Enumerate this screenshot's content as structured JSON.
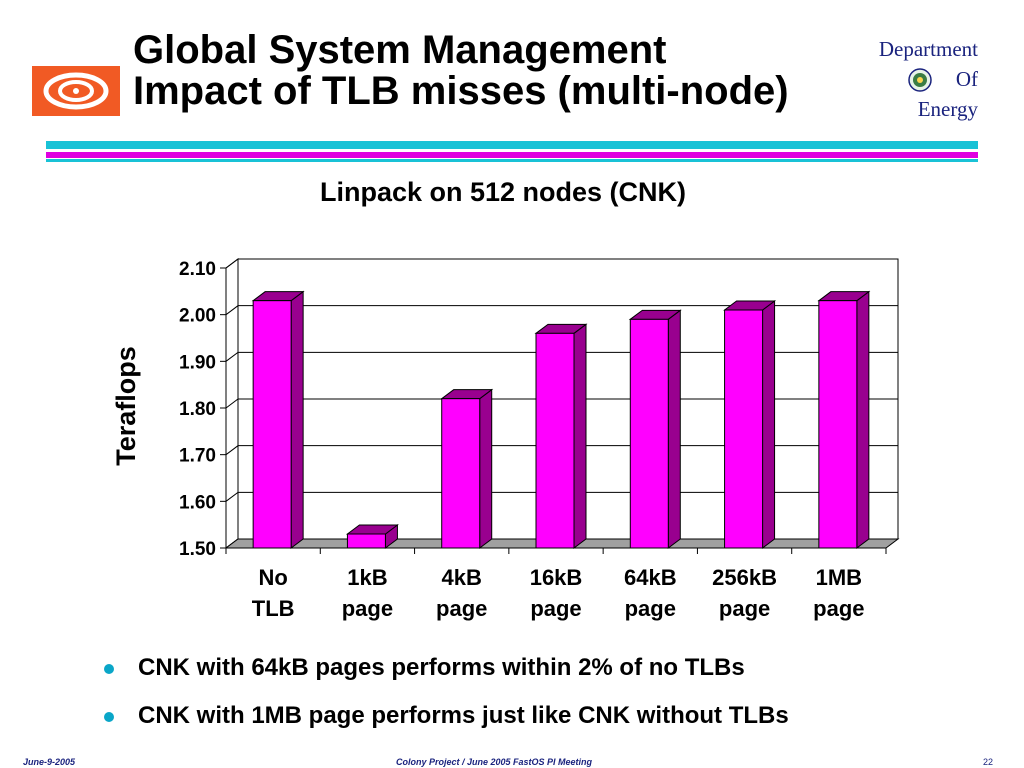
{
  "slide": {
    "title_line1": "Global System Management",
    "title_line2": "Impact of TLB misses (multi-node)",
    "doe_line1": "Department",
    "doe_line2": "Of",
    "doe_line3": "Energy",
    "bullets": [
      "CNK with 64kB pages performs within 2% of no TLBs",
      "CNK with 1MB page performs just like CNK without TLBs"
    ],
    "footer_left": "June-9-2005",
    "footer_center": "Colony Project / June 2005 FastOS PI Meeting",
    "footer_right": "22",
    "colors": {
      "bar_front": "#ff00ff",
      "bar_side": "#99008f",
      "rule_cyan": "#19c2d6",
      "rule_magenta": "#e000e0"
    }
  },
  "chart_data": {
    "type": "bar",
    "title": "Linpack on 512 nodes (CNK)",
    "xlabel": "",
    "ylabel": "Teraflops",
    "categories": [
      [
        "No",
        "TLB"
      ],
      [
        "1kB",
        "page"
      ],
      [
        "4kB",
        "page"
      ],
      [
        "16kB",
        "page"
      ],
      [
        "64kB",
        "page"
      ],
      [
        "256kB",
        "page"
      ],
      [
        "1MB",
        "page"
      ]
    ],
    "values": [
      2.03,
      1.53,
      1.82,
      1.96,
      1.99,
      2.01,
      2.03
    ],
    "ylim": [
      1.5,
      2.1
    ],
    "yticks": [
      "1.50",
      "1.60",
      "1.70",
      "1.80",
      "1.90",
      "2.00",
      "2.10"
    ],
    "grid": true,
    "legend": "none"
  }
}
